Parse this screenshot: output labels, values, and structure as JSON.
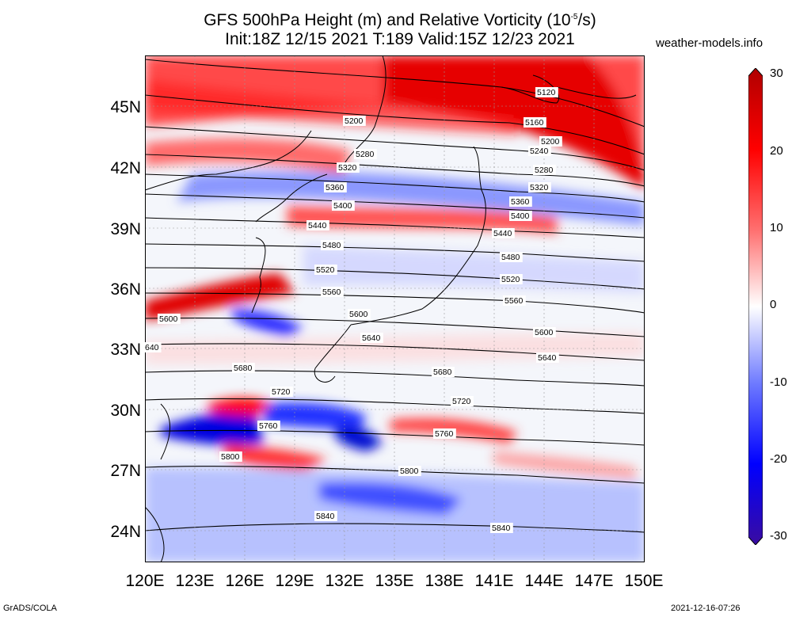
{
  "header": {
    "title_part1": "GFS 500hPa Height (m) and Relative Vorticity (10",
    "title_exponent": "-5",
    "title_part2": "/s)",
    "subtitle": "Init:18Z 12/15 2021 T:189 Valid:15Z 12/23 2021",
    "site": "weather-models.info"
  },
  "axes": {
    "lat_labels": [
      "45N",
      "42N",
      "39N",
      "36N",
      "33N",
      "30N",
      "27N",
      "24N"
    ],
    "lon_labels": [
      "120E",
      "123E",
      "126E",
      "129E",
      "132E",
      "135E",
      "138E",
      "141E",
      "144E",
      "147E",
      "150E"
    ],
    "lat_range": [
      22.5,
      47.5
    ],
    "lon_range": [
      120,
      150
    ]
  },
  "colorbar": {
    "labels": [
      "30",
      "20",
      "10",
      "0",
      "-10",
      "-20",
      "-30"
    ],
    "range": [
      -30,
      30
    ],
    "colors": [
      "#3a0ca0",
      "#0000ff",
      "#6f7bff",
      "#ffffff",
      "#ff7070",
      "#ff0000",
      "#b00000"
    ]
  },
  "contours": {
    "labels_left": [
      "5200",
      "5280",
      "5320",
      "5360",
      "5400",
      "5440",
      "5480",
      "5520",
      "5560",
      "5600",
      "5640",
      "5680",
      "5720",
      "5760",
      "5800",
      "5840",
      "5600",
      "640"
    ],
    "labels_right": [
      "5120",
      "5160",
      "5200",
      "5240",
      "5280",
      "5320",
      "5360",
      "5400",
      "5440",
      "5480",
      "5520",
      "5560",
      "5600",
      "5640",
      "5680",
      "5720",
      "5760",
      "5800",
      "5840"
    ]
  },
  "footer": {
    "left": "GrADS/COLA",
    "right": "2021-12-16-07:26"
  }
}
